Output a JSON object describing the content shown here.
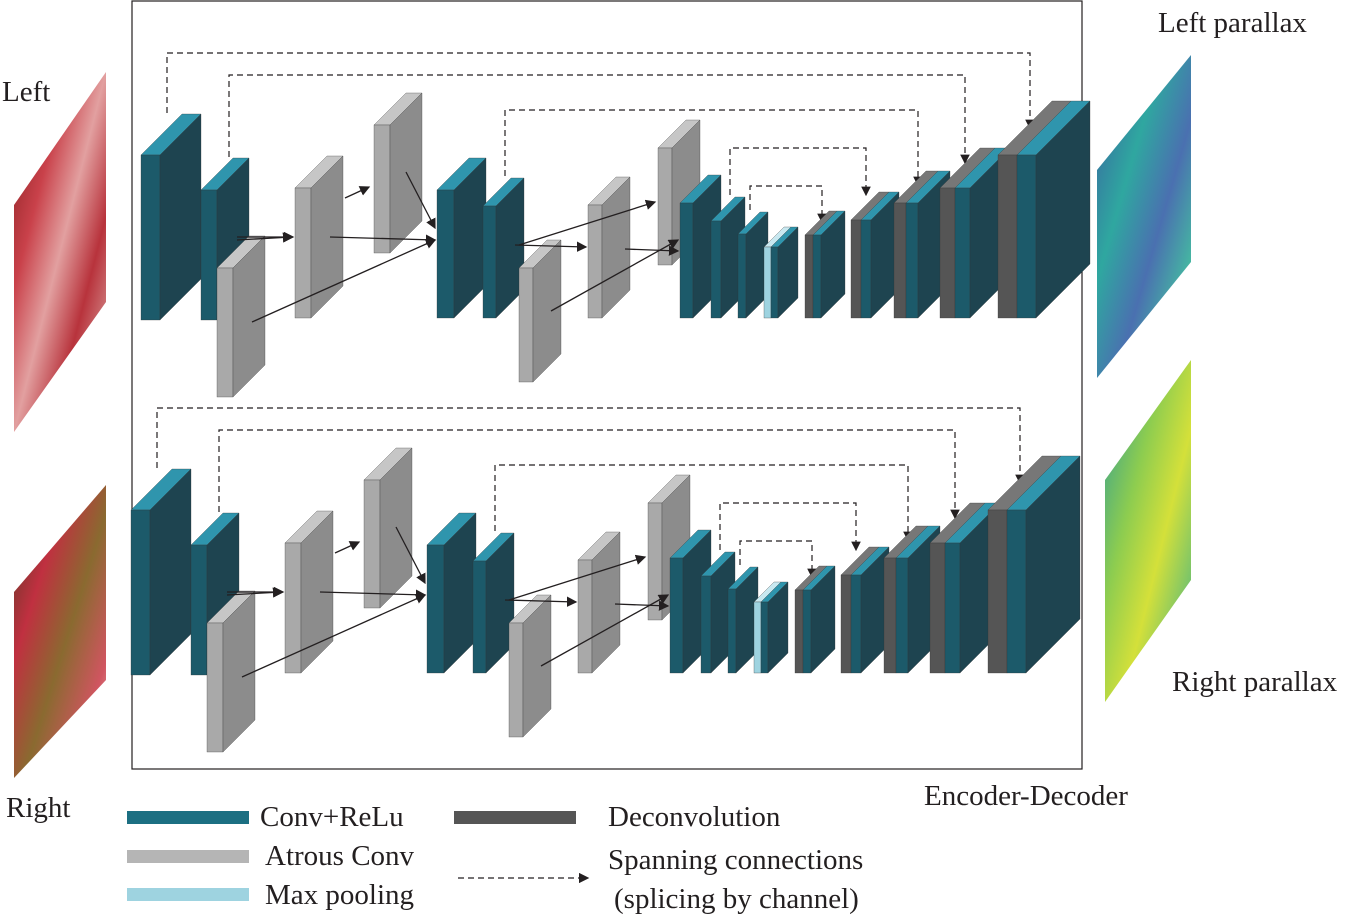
{
  "labels": {
    "left_input": "Left",
    "right_input": "Right",
    "left_output": "Left parallax",
    "right_output": "Right parallax",
    "model": "Encoder-Decoder"
  },
  "legend": {
    "conv": "Conv+ReLu",
    "atrous": "Atrous Conv",
    "maxpool": "Max pooling",
    "deconv": "Deconvolution",
    "skip_line1": "Spanning connections",
    "skip_line2": "(splicing by channel)"
  },
  "colors": {
    "conv_front": "#1c5a6a",
    "conv_side": "#1e4450",
    "conv_top": "#2f95ad",
    "atrous_front": "#a9a9a9",
    "atrous_side": "#8c8c8c",
    "atrous_top": "#c6c6c6",
    "maxpool": "#9ed3e0",
    "deconv": "#555555"
  }
}
